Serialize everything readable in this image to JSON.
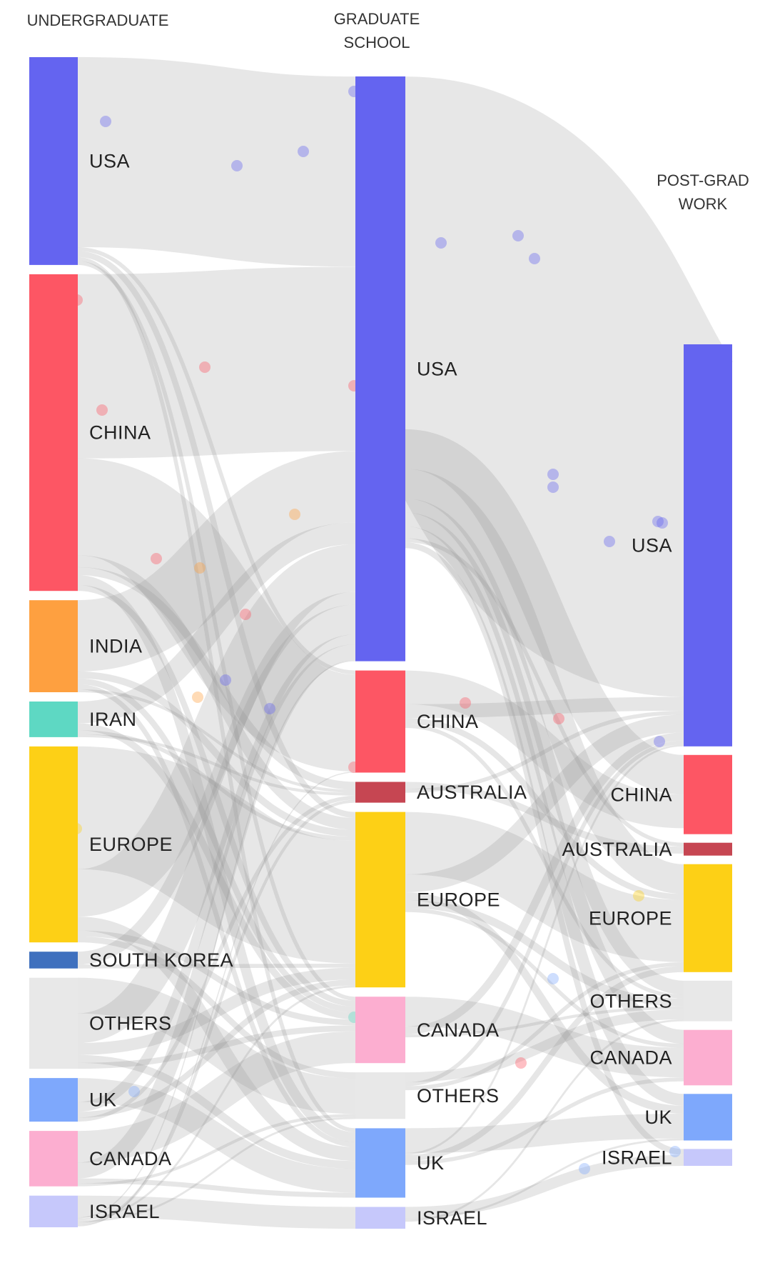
{
  "columns": [
    {
      "id": "undergrad",
      "header": [
        "UNDERGRADUATE"
      ]
    },
    {
      "id": "grad",
      "header": [
        "GRADUATE",
        "SCHOOL"
      ]
    },
    {
      "id": "post",
      "header": [
        "POST-GRAD",
        "WORK"
      ]
    }
  ],
  "colors": {
    "usa": "#6464f0",
    "china": "#fd5664",
    "india": "#fea040",
    "iran": "#5ed8c3",
    "europe": "#fdd016",
    "south_korea": "#3f70be",
    "others": "#e8e8e8",
    "uk": "#7ea8fc",
    "canada": "#fcaed0",
    "israel": "#c6c8fb",
    "australia": "#c64652",
    "link": "#a0a0a0"
  },
  "nodes": {
    "undergrad": [
      {
        "id": "usa",
        "label": "USA",
        "color": "usa",
        "value": 210
      },
      {
        "id": "china",
        "label": "CHINA",
        "color": "china",
        "value": 320
      },
      {
        "id": "india",
        "label": "INDIA",
        "color": "india",
        "value": 93
      },
      {
        "id": "iran",
        "label": "IRAN",
        "color": "iran",
        "value": 36
      },
      {
        "id": "europe",
        "label": "EUROPE",
        "color": "europe",
        "value": 198
      },
      {
        "id": "south_korea",
        "label": "SOUTH KOREA",
        "color": "south_korea",
        "value": 17
      },
      {
        "id": "others",
        "label": "OTHERS",
        "color": "others",
        "value": 92
      },
      {
        "id": "uk",
        "label": "UK",
        "color": "uk",
        "value": 44
      },
      {
        "id": "canada",
        "label": "CANADA",
        "color": "canada",
        "value": 56
      },
      {
        "id": "israel",
        "label": "ISRAEL",
        "color": "israel",
        "value": 32
      }
    ],
    "grad": [
      {
        "id": "usa",
        "label": "USA",
        "color": "usa",
        "value": 590
      },
      {
        "id": "china",
        "label": "CHINA",
        "color": "china",
        "value": 103
      },
      {
        "id": "australia",
        "label": "AUSTRALIA",
        "color": "australia",
        "value": 21
      },
      {
        "id": "europe",
        "label": "EUROPE",
        "color": "europe",
        "value": 177
      },
      {
        "id": "canada",
        "label": "CANADA",
        "color": "canada",
        "value": 67
      },
      {
        "id": "others",
        "label": "OTHERS",
        "color": "others",
        "value": 47
      },
      {
        "id": "uk",
        "label": "UK",
        "color": "uk",
        "value": 70
      },
      {
        "id": "israel",
        "label": "ISRAEL",
        "color": "israel",
        "value": 22
      }
    ],
    "post": [
      {
        "id": "usa",
        "label": "USA",
        "color": "usa",
        "value": 406
      },
      {
        "id": "china",
        "label": "CHINA",
        "color": "china",
        "value": 80
      },
      {
        "id": "australia",
        "label": "AUSTRALIA",
        "color": "australia",
        "value": 13
      },
      {
        "id": "europe",
        "label": "EUROPE",
        "color": "europe",
        "value": 109
      },
      {
        "id": "others",
        "label": "OTHERS",
        "color": "others",
        "value": 41
      },
      {
        "id": "canada",
        "label": "CANADA",
        "color": "canada",
        "value": 56
      },
      {
        "id": "uk",
        "label": "UK",
        "color": "uk",
        "value": 47
      },
      {
        "id": "israel",
        "label": "ISRAEL",
        "color": "israel",
        "value": 17
      }
    ]
  },
  "links": {
    "undergrad_to_grad": [
      {
        "from": "usa",
        "to": "usa",
        "value": 192
      },
      {
        "from": "usa",
        "to": "china",
        "value": 4
      },
      {
        "from": "usa",
        "to": "europe",
        "value": 6
      },
      {
        "from": "usa",
        "to": "uk",
        "value": 4
      },
      {
        "from": "usa",
        "to": "canada",
        "value": 4
      },
      {
        "from": "china",
        "to": "usa",
        "value": 186
      },
      {
        "from": "china",
        "to": "china",
        "value": 98
      },
      {
        "from": "china",
        "to": "europe",
        "value": 12
      },
      {
        "from": "china",
        "to": "australia",
        "value": 8
      },
      {
        "from": "china",
        "to": "uk",
        "value": 10
      },
      {
        "from": "china",
        "to": "canada",
        "value": 6
      },
      {
        "from": "india",
        "to": "usa",
        "value": 72
      },
      {
        "from": "india",
        "to": "europe",
        "value": 7
      },
      {
        "from": "india",
        "to": "canada",
        "value": 6
      },
      {
        "from": "india",
        "to": "uk",
        "value": 5
      },
      {
        "from": "india",
        "to": "australia",
        "value": 3
      },
      {
        "from": "iran",
        "to": "usa",
        "value": 22
      },
      {
        "from": "iran",
        "to": "canada",
        "value": 7
      },
      {
        "from": "iran",
        "to": "europe",
        "value": 4
      },
      {
        "from": "iran",
        "to": "australia",
        "value": 3
      },
      {
        "from": "europe",
        "to": "europe",
        "value": 124
      },
      {
        "from": "europe",
        "to": "usa",
        "value": 48
      },
      {
        "from": "europe",
        "to": "uk",
        "value": 14
      },
      {
        "from": "europe",
        "to": "canada",
        "value": 6
      },
      {
        "from": "europe",
        "to": "others",
        "value": 6
      },
      {
        "from": "south_korea",
        "to": "usa",
        "value": 13
      },
      {
        "from": "south_korea",
        "to": "europe",
        "value": 4
      },
      {
        "from": "others",
        "to": "others",
        "value": 36
      },
      {
        "from": "others",
        "to": "usa",
        "value": 30
      },
      {
        "from": "others",
        "to": "europe",
        "value": 12
      },
      {
        "from": "others",
        "to": "uk",
        "value": 8
      },
      {
        "from": "others",
        "to": "canada",
        "value": 6
      },
      {
        "from": "uk",
        "to": "uk",
        "value": 24
      },
      {
        "from": "uk",
        "to": "usa",
        "value": 10
      },
      {
        "from": "uk",
        "to": "europe",
        "value": 6
      },
      {
        "from": "uk",
        "to": "australia",
        "value": 4
      },
      {
        "from": "canada",
        "to": "canada",
        "value": 32
      },
      {
        "from": "canada",
        "to": "usa",
        "value": 16
      },
      {
        "from": "canada",
        "to": "uk",
        "value": 5
      },
      {
        "from": "canada",
        "to": "others",
        "value": 3
      },
      {
        "from": "israel",
        "to": "israel",
        "value": 22
      },
      {
        "from": "israel",
        "to": "usa",
        "value": 1
      },
      {
        "from": "israel",
        "to": "europe",
        "value": 2
      },
      {
        "from": "israel",
        "to": "others",
        "value": 2
      },
      {
        "from": "israel",
        "to": "canada",
        "value": 0
      },
      {
        "from": "israel",
        "to": "australia",
        "value": 3
      },
      {
        "from": "israel",
        "to": "china",
        "value": 1
      },
      {
        "from": "israel",
        "to": "uk",
        "value": 0
      },
      {
        "from": "south_korea",
        "to": "china",
        "value": 0
      }
    ],
    "grad_to_post": [
      {
        "from": "usa",
        "to": "usa",
        "value": 356
      },
      {
        "from": "usa",
        "to": "china",
        "value": 40
      },
      {
        "from": "usa",
        "to": "europe",
        "value": 30
      },
      {
        "from": "usa",
        "to": "others",
        "value": 14
      },
      {
        "from": "usa",
        "to": "canada",
        "value": 14
      },
      {
        "from": "usa",
        "to": "uk",
        "value": 12
      },
      {
        "from": "usa",
        "to": "australia",
        "value": 4
      },
      {
        "from": "usa",
        "to": "israel",
        "value": 6
      },
      {
        "from": "china",
        "to": "china",
        "value": 34
      },
      {
        "from": "china",
        "to": "usa",
        "value": 14
      },
      {
        "from": "china",
        "to": "europe",
        "value": 6
      },
      {
        "from": "china",
        "to": "others",
        "value": 4
      },
      {
        "from": "australia",
        "to": "australia",
        "value": 7
      },
      {
        "from": "australia",
        "to": "usa",
        "value": 4
      },
      {
        "from": "europe",
        "to": "europe",
        "value": 63
      },
      {
        "from": "europe",
        "to": "usa",
        "value": 18
      },
      {
        "from": "europe",
        "to": "uk",
        "value": 8
      },
      {
        "from": "europe",
        "to": "others",
        "value": 8
      },
      {
        "from": "europe",
        "to": "canada",
        "value": 4
      },
      {
        "from": "canada",
        "to": "canada",
        "value": 30
      },
      {
        "from": "canada",
        "to": "usa",
        "value": 8
      },
      {
        "from": "canada",
        "to": "others",
        "value": 3
      },
      {
        "from": "others",
        "to": "others",
        "value": 10
      },
      {
        "from": "others",
        "to": "usa",
        "value": 4
      },
      {
        "from": "others",
        "to": "europe",
        "value": 4
      },
      {
        "from": "uk",
        "to": "uk",
        "value": 25
      },
      {
        "from": "uk",
        "to": "usa",
        "value": 2
      },
      {
        "from": "uk",
        "to": "europe",
        "value": 6
      },
      {
        "from": "uk",
        "to": "canada",
        "value": 4
      },
      {
        "from": "israel",
        "to": "israel",
        "value": 11
      },
      {
        "from": "israel",
        "to": "usa",
        "value": 0
      },
      {
        "from": "israel",
        "to": "uk",
        "value": 2
      },
      {
        "from": "israel",
        "to": "others",
        "value": 2
      }
    ]
  }
}
